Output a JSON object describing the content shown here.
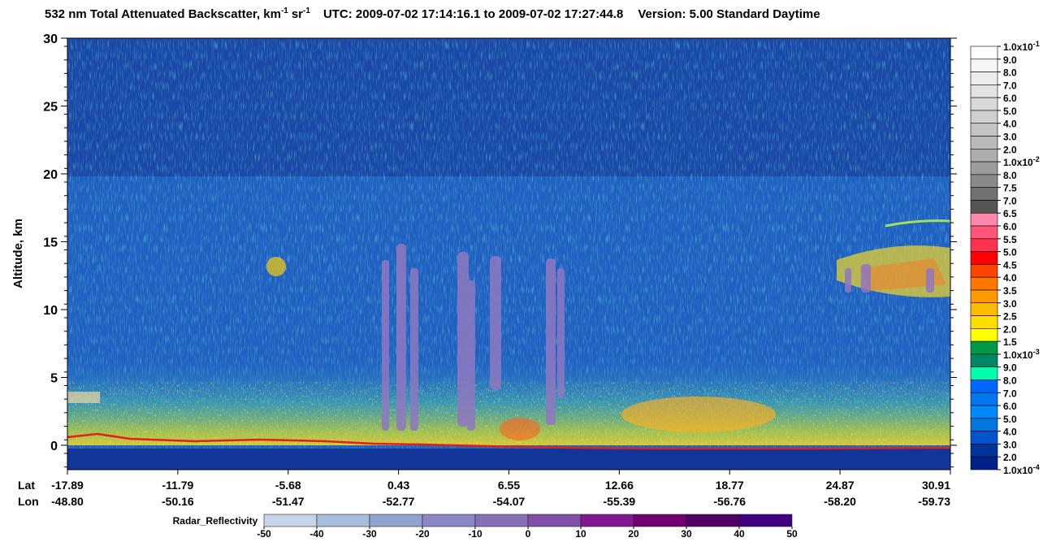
{
  "chart_data": {
    "type": "curtain",
    "title": [
      "532 nm Total Attenuated Backscatter, km",
      "-1",
      "sr",
      "-1",
      "UTC:  2009-07-02 17:14:16.1  to  2009-07-02 17:27:44.8",
      "Version: 5.00  Standard  Daytime"
    ],
    "ylabel": "Altitude, km",
    "ylim": [
      -1.8,
      30
    ],
    "yticks": [
      0,
      5,
      10,
      15,
      20,
      25,
      30
    ],
    "x_rows": [
      {
        "name": "Lat",
        "labels": [
          "-17.89",
          "-11.79",
          "-5.68",
          "0.43",
          "6.55",
          "12.66",
          "18.77",
          "24.87",
          "30.91"
        ]
      },
      {
        "name": "Lon",
        "labels": [
          "-48.80",
          "-50.16",
          "-51.47",
          "-52.77",
          "-54.07",
          "-55.39",
          "-56.76",
          "-58.20",
          "-59.73"
        ]
      }
    ],
    "colorbar": {
      "labels": [
        {
          "base": "1.0x10",
          "exp": "-1"
        },
        "9.0",
        "8.0",
        "7.0",
        "6.0",
        "5.0",
        "4.0",
        "3.0",
        "2.0",
        {
          "base": "1.0x10",
          "exp": "-2"
        },
        "8.0",
        "7.5",
        "7.0",
        "6.5",
        "6.0",
        "5.5",
        "5.0",
        "4.5",
        "4.0",
        "3.5",
        "3.0",
        "2.5",
        "2.0",
        "1.5",
        {
          "base": "1.0x10",
          "exp": "-3"
        },
        "9.0",
        "8.0",
        "7.0",
        "6.0",
        "5.0",
        "4.0",
        "3.0",
        "2.0",
        {
          "base": "1.0x10",
          "exp": "-4"
        }
      ],
      "colors": [
        "#ffffff",
        "#f6f6f6",
        "#ededed",
        "#e3e3e3",
        "#d9d9d9",
        "#cfcfcf",
        "#c5c5c5",
        "#bababa",
        "#adadad",
        "#9c9c9c",
        "#8a8a8a",
        "#717171",
        "#555555",
        "#ff88aa",
        "#ff5577",
        "#ff3050",
        "#ff0000",
        "#ff4400",
        "#ff7700",
        "#ff9900",
        "#ffbb00",
        "#ffdd00",
        "#ffff00",
        "#009944",
        "#008866",
        "#00ffaa",
        "#0066ff",
        "#0077ee",
        "#0088ff",
        "#0077dd",
        "#0055cc",
        "#003399",
        "#002288"
      ]
    },
    "radar": {
      "label": "Radar_Reflectivity",
      "lim": [
        -50,
        50
      ],
      "ticks": [
        -50,
        -40,
        -30,
        -20,
        -10,
        0,
        10,
        20,
        30,
        40,
        50
      ],
      "colors": [
        "#c8d4e8",
        "#a8bcdc",
        "#90a4d0",
        "#8c88c8",
        "#8870b8",
        "#8050a8",
        "#801890",
        "#700070",
        "#500060",
        "#400080"
      ]
    }
  }
}
